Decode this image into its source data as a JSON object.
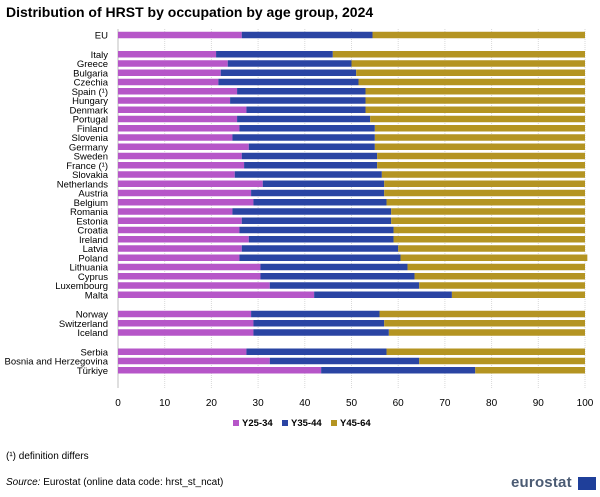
{
  "chart_data": {
    "type": "bar",
    "orientation": "horizontal",
    "stacked": true,
    "title": "Distribution of HRST by occupation by age group, 2024",
    "xlim": [
      0,
      100
    ],
    "xticks": [
      0,
      10,
      20,
      30,
      40,
      50,
      60,
      70,
      80,
      90,
      100
    ],
    "grid": true,
    "legend_position": "bottom",
    "groups": [
      [
        "EU"
      ],
      [
        "Italy",
        "Greece",
        "Bulgaria",
        "Czechia",
        "Spain (¹)",
        "Hungary",
        "Denmark",
        "Portugal",
        "Finland",
        "Slovenia",
        "Germany",
        "Sweden",
        "France (¹)",
        "Slovakia",
        "Netherlands",
        "Austria",
        "Belgium",
        "Romania",
        "Estonia",
        "Croatia",
        "Ireland",
        "Latvia",
        "Poland",
        "Lithuania",
        "Cyprus",
        "Luxembourg",
        "Malta"
      ],
      [
        "Norway",
        "Switzerland",
        "Iceland"
      ],
      [
        "Serbia",
        "Bosnia and Herzegovina",
        "Türkiye"
      ]
    ],
    "series": [
      {
        "name": "Y25-34",
        "color": "#b656c8",
        "values": [
          26.5,
          21,
          23.5,
          22,
          21.5,
          25.5,
          24,
          27.5,
          25.5,
          26,
          24.5,
          28,
          26.5,
          27,
          25,
          31,
          28.5,
          29,
          24.5,
          26.5,
          26,
          28,
          26.5,
          26,
          30.5,
          30.5,
          32.5,
          42,
          28.5,
          29,
          29,
          27.5,
          32.5,
          43.5
        ]
      },
      {
        "name": "Y35-44",
        "color": "#2a44a3",
        "values": [
          28,
          25,
          26.5,
          29,
          30,
          27.5,
          29,
          25.5,
          28.5,
          29,
          30.5,
          27,
          29,
          28.5,
          31.5,
          26,
          28.5,
          28.5,
          34,
          32,
          33,
          31,
          33.5,
          34.5,
          31.5,
          33,
          32,
          29.5,
          27.5,
          28,
          29,
          30,
          32,
          33
        ]
      },
      {
        "name": "Y45-64",
        "color": "#b49422",
        "values": [
          45.5,
          54,
          50,
          49,
          48.5,
          47,
          47,
          47,
          46,
          45,
          45,
          45,
          44.5,
          44.5,
          43.5,
          43,
          43,
          42.5,
          41.5,
          41.5,
          41,
          41,
          40,
          40,
          38,
          36.5,
          35.5,
          28.5,
          44,
          43,
          42,
          42.5,
          35.5,
          23.5
        ]
      }
    ]
  },
  "footnote": "(¹) definition differs",
  "source": {
    "label": "Source:",
    "text": " Eurostat (online data code: hrst_st_ncat)"
  },
  "logo": {
    "text": "eurostat",
    "flag_color": "#1f3f9a",
    "text_color": "#4b5b73"
  }
}
